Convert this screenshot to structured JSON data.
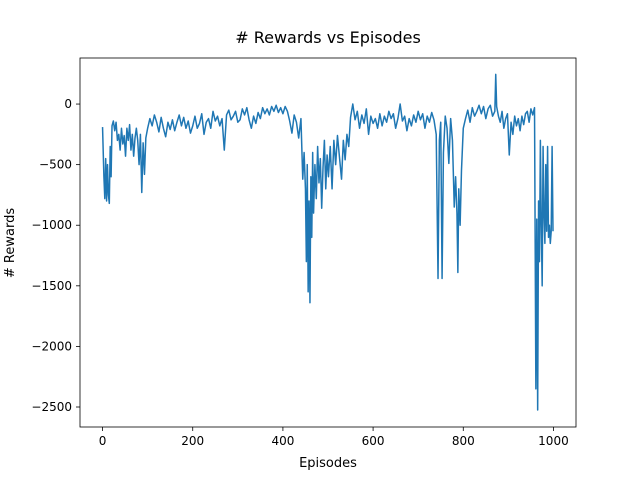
{
  "chart_data": {
    "type": "line",
    "title": "# Rewards vs Episodes",
    "x_label": "Episodes",
    "y_label": "# Rewards",
    "xlim": [
      -50,
      1050
    ],
    "ylim": [
      -2665,
      380
    ],
    "xticks": [
      0,
      200,
      400,
      600,
      800,
      1000
    ],
    "yticks": [
      {
        "value": -2500,
        "label": "−2500"
      },
      {
        "value": -2000,
        "label": "−2000"
      },
      {
        "value": -1500,
        "label": "−1500"
      },
      {
        "value": -1000,
        "label": "−1000"
      },
      {
        "value": -500,
        "label": "−500"
      },
      0
    ],
    "grid": false,
    "x": [
      0,
      3,
      5,
      7,
      9,
      11,
      13,
      15,
      17,
      19,
      21,
      24,
      27,
      30,
      33,
      36,
      39,
      42,
      45,
      48,
      51,
      54,
      57,
      60,
      63,
      66,
      69,
      72,
      75,
      78,
      81,
      84,
      87,
      90,
      93,
      96,
      100,
      105,
      110,
      115,
      120,
      125,
      130,
      135,
      140,
      145,
      150,
      155,
      160,
      165,
      170,
      175,
      180,
      185,
      190,
      195,
      200,
      205,
      210,
      215,
      220,
      225,
      230,
      235,
      240,
      245,
      250,
      255,
      260,
      265,
      270,
      275,
      280,
      285,
      290,
      295,
      300,
      305,
      310,
      315,
      320,
      325,
      330,
      335,
      340,
      345,
      350,
      355,
      360,
      365,
      370,
      375,
      380,
      385,
      390,
      395,
      400,
      405,
      410,
      415,
      420,
      425,
      430,
      435,
      440,
      444,
      447,
      450,
      452,
      454,
      456,
      458,
      460,
      462,
      464,
      466,
      468,
      471,
      474,
      477,
      480,
      483,
      486,
      489,
      492,
      495,
      498,
      501,
      505,
      509,
      513,
      517,
      521,
      525,
      530,
      534,
      538,
      542,
      546,
      550,
      555,
      560,
      565,
      570,
      575,
      580,
      585,
      590,
      595,
      600,
      605,
      610,
      615,
      620,
      625,
      630,
      635,
      640,
      645,
      650,
      655,
      660,
      665,
      670,
      675,
      680,
      685,
      690,
      695,
      700,
      705,
      710,
      715,
      720,
      725,
      730,
      735,
      740,
      744,
      747,
      750,
      753,
      756,
      760,
      764,
      768,
      772,
      776,
      780,
      783,
      786,
      788,
      790,
      793,
      796,
      800,
      805,
      810,
      815,
      820,
      825,
      830,
      835,
      840,
      845,
      850,
      855,
      860,
      865,
      870,
      872,
      874,
      878,
      882,
      886,
      890,
      894,
      898,
      902,
      906,
      910,
      914,
      918,
      922,
      926,
      930,
      934,
      938,
      942,
      946,
      950,
      954,
      958,
      961,
      963,
      965,
      967,
      969,
      971,
      973,
      975,
      977,
      979,
      981,
      983,
      985,
      987,
      989,
      991,
      993,
      995,
      997,
      999
    ],
    "series": [
      {
        "name": "rewards",
        "color": "#1f77b4",
        "values": [
          -190,
          -600,
          -780,
          -450,
          -800,
          -500,
          -750,
          -820,
          -350,
          -600,
          -180,
          -140,
          -220,
          -150,
          -300,
          -250,
          -380,
          -200,
          -330,
          -260,
          -430,
          -200,
          -300,
          -170,
          -380,
          -250,
          -430,
          -280,
          -200,
          -300,
          -500,
          -250,
          -730,
          -320,
          -580,
          -280,
          -200,
          -120,
          -180,
          -90,
          -150,
          -230,
          -110,
          -200,
          -270,
          -150,
          -210,
          -130,
          -220,
          -150,
          -90,
          -180,
          -110,
          -200,
          -140,
          -240,
          -180,
          -100,
          -200,
          -160,
          -80,
          -250,
          -150,
          -120,
          -200,
          -60,
          -140,
          -100,
          -180,
          -120,
          -380,
          -90,
          -50,
          -130,
          -100,
          -60,
          -150,
          -130,
          -40,
          -90,
          -30,
          -130,
          -200,
          -100,
          -160,
          -70,
          -120,
          -30,
          -80,
          -40,
          -90,
          -20,
          -60,
          -10,
          -70,
          -30,
          -80,
          -20,
          -60,
          -140,
          -240,
          -90,
          -150,
          -280,
          -120,
          -620,
          -400,
          -700,
          -1300,
          -500,
          -1550,
          -800,
          -1640,
          -600,
          -1100,
          -400,
          -900,
          -500,
          -780,
          -350,
          -650,
          -450,
          -860,
          -520,
          -300,
          -700,
          -420,
          -600,
          -350,
          -700,
          -300,
          -500,
          -260,
          -420,
          -620,
          -300,
          -460,
          -250,
          -350,
          -110,
          0,
          -130,
          -60,
          -200,
          -90,
          -160,
          -40,
          -250,
          -100,
          -160,
          -120,
          -200,
          -80,
          -180,
          -100,
          -150,
          -60,
          -120,
          -80,
          -200,
          -120,
          0,
          -140,
          -100,
          -220,
          -120,
          -180,
          -90,
          -150,
          -60,
          -130,
          -80,
          -200,
          -100,
          -150,
          -70,
          -130,
          -250,
          -1440,
          -300,
          -150,
          -1440,
          -400,
          -100,
          -200,
          -490,
          -120,
          -300,
          -850,
          -600,
          -900,
          -1390,
          -700,
          -1000,
          -550,
          -200,
          -120,
          -50,
          -150,
          -30,
          -100,
          -60,
          -10,
          -80,
          -20,
          -120,
          -40,
          -10,
          -100,
          -60,
          245,
          -20,
          -100,
          -150,
          -60,
          -200,
          -120,
          -80,
          -420,
          -150,
          -250,
          -100,
          -180,
          -120,
          -220,
          -100,
          -170,
          -80,
          -60,
          -150,
          -40,
          -90,
          -30,
          -2350,
          -950,
          -2525,
          -800,
          -1300,
          -300,
          -1000,
          -1500,
          -350,
          -900,
          -1150,
          -500,
          -1050,
          -350,
          -1100,
          -1000,
          -1150,
          -1050,
          -350,
          -1050
        ]
      }
    ]
  }
}
